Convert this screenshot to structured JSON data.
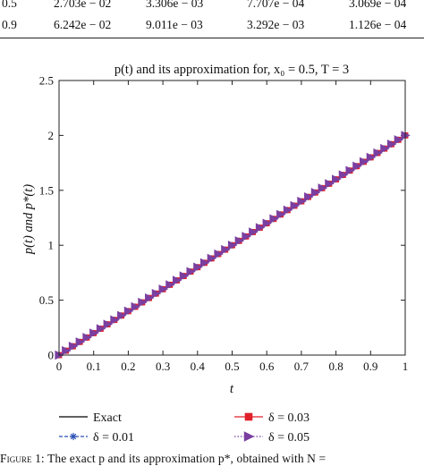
{
  "table": {
    "rows": [
      {
        "x": "0.5",
        "cols": [
          "2.703e − 02",
          "3.306e − 03",
          "7.707e − 04",
          "3.069e − 04"
        ]
      },
      {
        "x": "0.9",
        "cols": [
          "6.242e − 02",
          "9.011e − 03",
          "3.292e − 03",
          "1.126e − 04"
        ]
      }
    ]
  },
  "chart_data": {
    "type": "line",
    "title": "p(t) and its approximation for, x₀ = 0.5, T = 3",
    "xlabel": "t",
    "ylabel": "p(t) and p*(t)",
    "xlim": [
      0,
      1
    ],
    "ylim": [
      0,
      2.5
    ],
    "xticks": [
      "0",
      "0.1",
      "0.2",
      "0.3",
      "0.4",
      "0.5",
      "0.6",
      "0.7",
      "0.8",
      "0.9",
      "1"
    ],
    "yticks": [
      "0",
      "0.5",
      "1",
      "1.5",
      "2",
      "2.5"
    ],
    "grid": false,
    "legend_position": "bottom",
    "series": [
      {
        "name": "Exact",
        "x": [
          0,
          1
        ],
        "y": [
          0,
          2
        ],
        "color": "#000000",
        "marker": "none"
      },
      {
        "name": "δ = 0.01",
        "x": [
          0,
          1
        ],
        "y": [
          0,
          2
        ],
        "color": "#2b4fb5",
        "marker": "star",
        "points": 51
      },
      {
        "name": "δ = 0.03",
        "x": [
          0,
          1
        ],
        "y": [
          0,
          2
        ],
        "color": "#e0202a",
        "marker": "square",
        "points": 51
      },
      {
        "name": "δ = 0.05",
        "x": [
          0,
          1
        ],
        "y": [
          0,
          2
        ],
        "color": "#7a3fa0",
        "marker": "triangle",
        "points": 51
      }
    ]
  },
  "caption": {
    "label": "Figure 1:",
    "text": "The exact p and its approximation p*, obtained with N ="
  }
}
